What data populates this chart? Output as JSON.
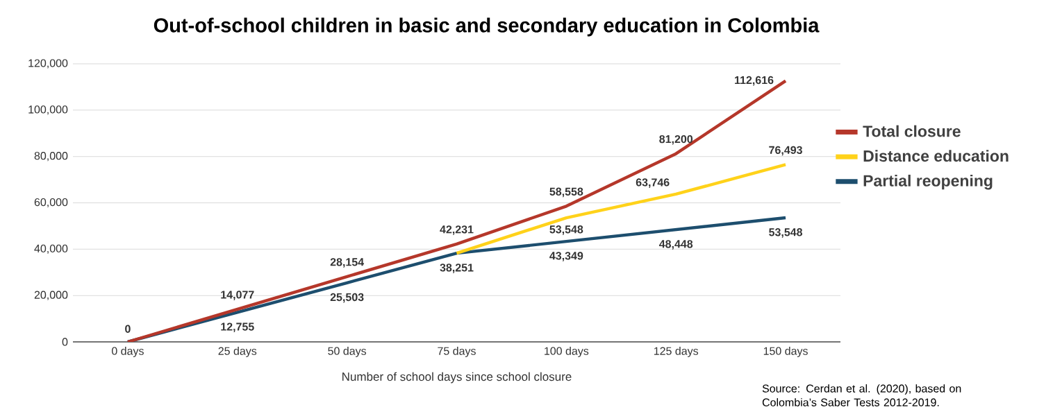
{
  "chart_data": {
    "type": "line",
    "title": "Out-of-school children in basic and secondary education in Colombia",
    "xlabel": "Number of school days since school closure",
    "categories": [
      "0 days",
      "25 days",
      "50 days",
      "75 days",
      "100 days",
      "125 days",
      "150 days"
    ],
    "series": [
      {
        "name": "Total closure",
        "color": "#b5372a",
        "values": [
          0,
          14077,
          28154,
          42231,
          58558,
          81200,
          112616
        ],
        "value_labels": [
          "0",
          "14,077",
          "28,154",
          "42,231",
          "58,558",
          "81,200",
          "112,616"
        ]
      },
      {
        "name": "Distance education",
        "color": "#ffd21a",
        "values": [
          null,
          null,
          null,
          38251,
          53548,
          63746,
          76493
        ],
        "value_labels": [
          null,
          null,
          null,
          null,
          "53,548",
          "63,746",
          "76,493"
        ]
      },
      {
        "name": "Partial reopening",
        "color": "#1d4e6e",
        "values": [
          0,
          12755,
          25503,
          38251,
          43349,
          48448,
          53548
        ],
        "value_labels": [
          null,
          "12,755",
          "25,503",
          "38,251",
          "43,349",
          "48,448",
          "53,548"
        ]
      }
    ],
    "ylim": [
      0,
      120000
    ],
    "yticks": [
      {
        "value": 0,
        "label": "0"
      },
      {
        "value": 20000,
        "label": "20,000"
      },
      {
        "value": 40000,
        "label": "40,000"
      },
      {
        "value": 60000,
        "label": "60,000"
      },
      {
        "value": 80000,
        "label": "80,000"
      },
      {
        "value": 100000,
        "label": "100,000"
      },
      {
        "value": 120000,
        "label": "120,000"
      }
    ],
    "grid": "y",
    "legend": "right",
    "marker": "none",
    "line_style": "solid",
    "annotations": [
      "Source: Cerdan et al. (2020), based on Colombia’s Saber Tests 2012-2019."
    ]
  }
}
